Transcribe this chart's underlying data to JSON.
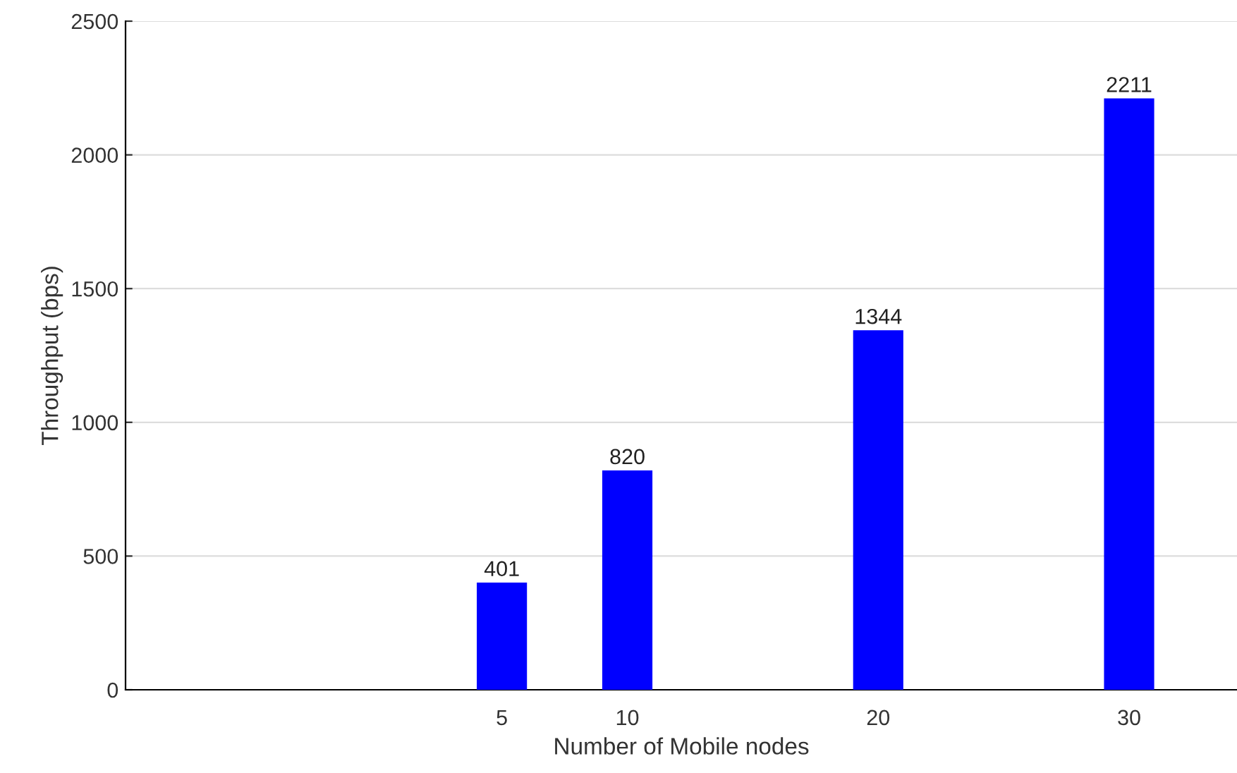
{
  "chart_data": {
    "type": "bar",
    "xlabel": "Number of Mobile nodes",
    "ylabel": "Throughput (bps)",
    "x": [
      5,
      10,
      20,
      30
    ],
    "values": [
      401,
      820,
      1344,
      2211
    ],
    "color": "#0000ff",
    "data_labels": true,
    "xlim": [
      -10,
      34.3
    ],
    "xticks": [
      5,
      10,
      20,
      30
    ],
    "ylim": [
      0,
      2500
    ],
    "yticks": [
      0,
      500,
      1000,
      1500,
      2000,
      2500
    ],
    "grid": "y"
  }
}
